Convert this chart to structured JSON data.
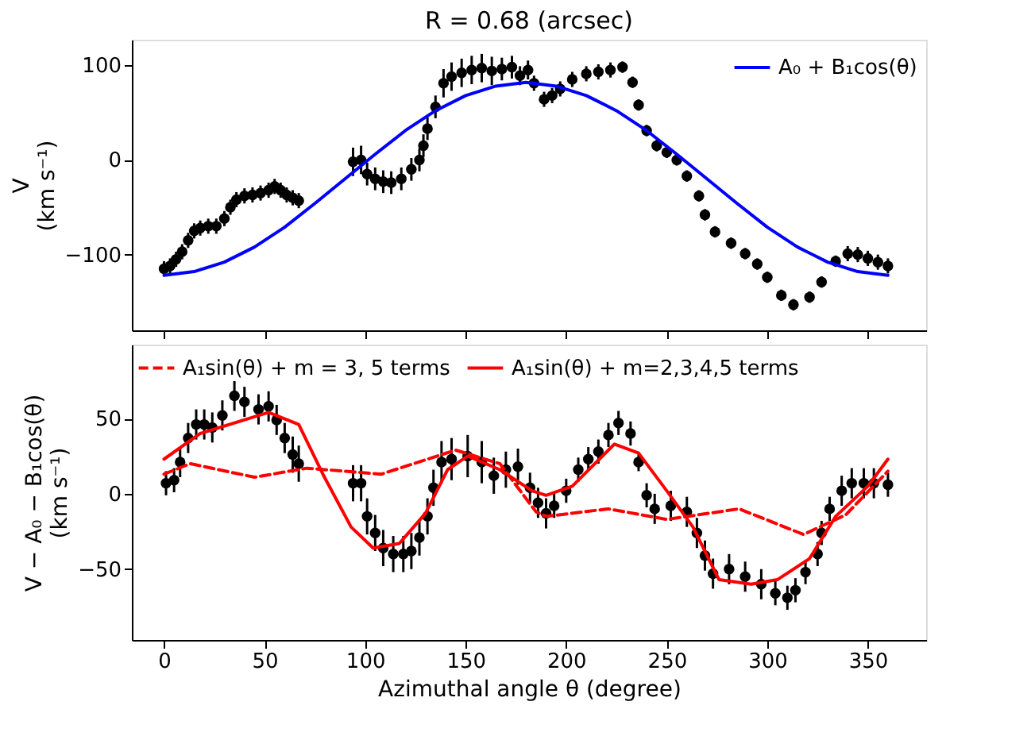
{
  "chart_data": [
    {
      "type": "scatter",
      "title": "R = 0.68 (arcsec)",
      "ylabel": "V\n(km s⁻¹)",
      "xlim": [
        -16,
        379
      ],
      "xticks": [
        0,
        50,
        100,
        150,
        200,
        250,
        300,
        350
      ],
      "ylim": [
        -180,
        127
      ],
      "yticks": [
        -100,
        0,
        100
      ],
      "tick_labels": "y",
      "grid": false,
      "legend": "top right",
      "series": [
        {
          "color": "#000000",
          "marker": "circle",
          "x": [
            0,
            3,
            6,
            9,
            12,
            15,
            18,
            22,
            26,
            30,
            33,
            36,
            40,
            44,
            48,
            52,
            55,
            58,
            61,
            64,
            67,
            94,
            98,
            101,
            105,
            109,
            113,
            118,
            123,
            127,
            129,
            131,
            135,
            139,
            143,
            148,
            153,
            158,
            163,
            168,
            173,
            177,
            181,
            184,
            189,
            193,
            197,
            203,
            210,
            216,
            222,
            228,
            233,
            236,
            240,
            245,
            250,
            255,
            260,
            266,
            269,
            274,
            282,
            289,
            295,
            300,
            307,
            313,
            321,
            327,
            334,
            340,
            345,
            350,
            355,
            360
          ],
          "values": [
            -115,
            -112,
            -105,
            -97,
            -85,
            -75,
            -72,
            -70,
            -70,
            -62,
            -50,
            -42,
            -38,
            -37,
            -35,
            -32,
            -28,
            -32,
            -37,
            -40,
            -43,
            -2,
            0,
            -15,
            -20,
            -23,
            -24,
            -20,
            -10,
            0,
            15,
            33,
            56,
            81,
            88,
            92,
            95,
            97,
            94,
            96,
            98,
            89,
            95,
            81,
            64,
            68,
            75,
            85,
            91,
            93,
            95,
            98,
            82,
            58,
            31,
            15,
            8,
            0,
            -17,
            -38,
            -58,
            -76,
            -88,
            -99,
            -110,
            -124,
            -143,
            -153,
            -145,
            -129,
            -107,
            -99,
            -100,
            -104,
            -108,
            -112
          ],
          "errors": [
            8,
            8,
            8,
            8,
            8,
            8,
            8,
            8,
            8,
            8,
            8,
            8,
            8,
            8,
            8,
            8,
            8,
            8,
            8,
            8,
            8,
            15,
            15,
            12,
            12,
            12,
            12,
            12,
            12,
            12,
            12,
            12,
            12,
            15,
            15,
            15,
            15,
            15,
            15,
            12,
            12,
            10,
            10,
            8,
            8,
            8,
            8,
            8,
            8,
            8,
            8,
            6,
            6,
            6,
            6,
            6,
            6,
            6,
            6,
            6,
            6,
            6,
            6,
            6,
            6,
            6,
            6,
            6,
            6,
            6,
            6,
            8,
            8,
            8,
            8,
            8
          ]
        },
        {
          "type": "line",
          "name": "A₀ + B₁cos(θ)",
          "color": "#0000ff",
          "line_style": "solid",
          "x": [
            0,
            15,
            30,
            45,
            60,
            75,
            90,
            105,
            120,
            135,
            150,
            165,
            180,
            195,
            210,
            225,
            240,
            255,
            270,
            285,
            300,
            315,
            330,
            345,
            360
          ],
          "values": [
            -122,
            -118,
            -108,
            -92,
            -71,
            -46,
            -20,
            6,
            31,
            52,
            68,
            78,
            82,
            78,
            68,
            52,
            31,
            6,
            -20,
            -46,
            -71,
            -92,
            -108,
            -118,
            -122
          ]
        }
      ]
    },
    {
      "type": "scatter",
      "xlabel": "Azimuthal angle θ (degree)",
      "ylabel": "V − A₀ − B₁cos(θ)\n(km s⁻¹)",
      "xlim": [
        -16,
        379
      ],
      "xticks": [
        0,
        50,
        100,
        150,
        200,
        250,
        300,
        350
      ],
      "ylim": [
        -97,
        99
      ],
      "yticks": [
        -50,
        0,
        50
      ],
      "grid": false,
      "legend": "top",
      "series": [
        {
          "color": "#000000",
          "marker": "circle",
          "x": [
            1,
            5,
            8,
            12,
            16,
            20,
            24,
            29,
            35,
            40,
            47,
            52,
            56,
            60,
            64,
            67,
            94,
            98,
            101,
            105,
            109,
            114,
            119,
            123,
            127,
            131,
            134,
            138,
            143,
            151,
            158,
            164,
            170,
            176,
            182,
            186,
            190,
            194,
            200,
            206,
            211,
            216,
            221,
            226,
            232,
            236,
            240,
            244,
            252,
            260,
            265,
            269,
            273,
            281,
            289,
            297,
            304,
            310,
            314,
            319,
            325,
            327,
            331,
            337,
            342,
            348,
            353,
            360
          ],
          "values": [
            7,
            9,
            21,
            37,
            46,
            46,
            44,
            52,
            65,
            61,
            56,
            58,
            49,
            37,
            26,
            20,
            7,
            7,
            -15,
            -26,
            -36,
            -40,
            -40,
            -38,
            -29,
            -15,
            4,
            21,
            23,
            25,
            21,
            12,
            16,
            18,
            4,
            -6,
            -13,
            -8,
            2,
            16,
            23,
            28,
            39,
            47,
            40,
            21,
            -1,
            -10,
            -8,
            -12,
            -26,
            -41,
            -53,
            -50,
            -55,
            -60,
            -66,
            -69,
            -64,
            -52,
            -40,
            -26,
            -10,
            2,
            7,
            7,
            7,
            6
          ],
          "errors": [
            8,
            8,
            10,
            10,
            10,
            10,
            10,
            10,
            10,
            10,
            10,
            10,
            10,
            10,
            12,
            12,
            12,
            12,
            12,
            12,
            12,
            12,
            12,
            12,
            12,
            12,
            12,
            14,
            14,
            14,
            14,
            12,
            12,
            12,
            10,
            10,
            10,
            8,
            8,
            8,
            8,
            8,
            8,
            8,
            8,
            6,
            8,
            10,
            10,
            10,
            10,
            10,
            10,
            10,
            10,
            10,
            8,
            8,
            8,
            8,
            8,
            8,
            8,
            10,
            10,
            10,
            10,
            8
          ]
        },
        {
          "type": "line",
          "name": "A₁sin(θ) + m = 3, 5 terms",
          "color": "#ff0000",
          "line_style": "dashed",
          "x": [
            0,
            13,
            45,
            71,
            108,
            145,
            167,
            185,
            190,
            221,
            250,
            286,
            318,
            339,
            360
          ],
          "values": [
            13,
            20,
            11,
            17,
            13,
            29,
            20,
            -12,
            -15,
            -10,
            -17,
            -10,
            -27,
            -14,
            15
          ]
        },
        {
          "type": "line",
          "name": "A₁sin(θ) + m=2,3,4,5 terms",
          "color": "#ff0000",
          "line_style": "solid",
          "x": [
            0,
            18,
            52,
            67,
            79,
            93,
            104,
            117,
            130,
            141,
            151,
            167,
            183,
            190,
            203,
            224,
            236,
            250,
            263,
            276,
            292,
            305,
            321,
            334,
            350,
            360
          ],
          "values": [
            23,
            40,
            54,
            46,
            13,
            -22,
            -36,
            -33,
            -13,
            16,
            25,
            16,
            2,
            -1,
            5,
            33,
            27,
            2,
            -22,
            -57,
            -60,
            -57,
            -43,
            -15,
            5,
            23
          ]
        }
      ]
    }
  ]
}
